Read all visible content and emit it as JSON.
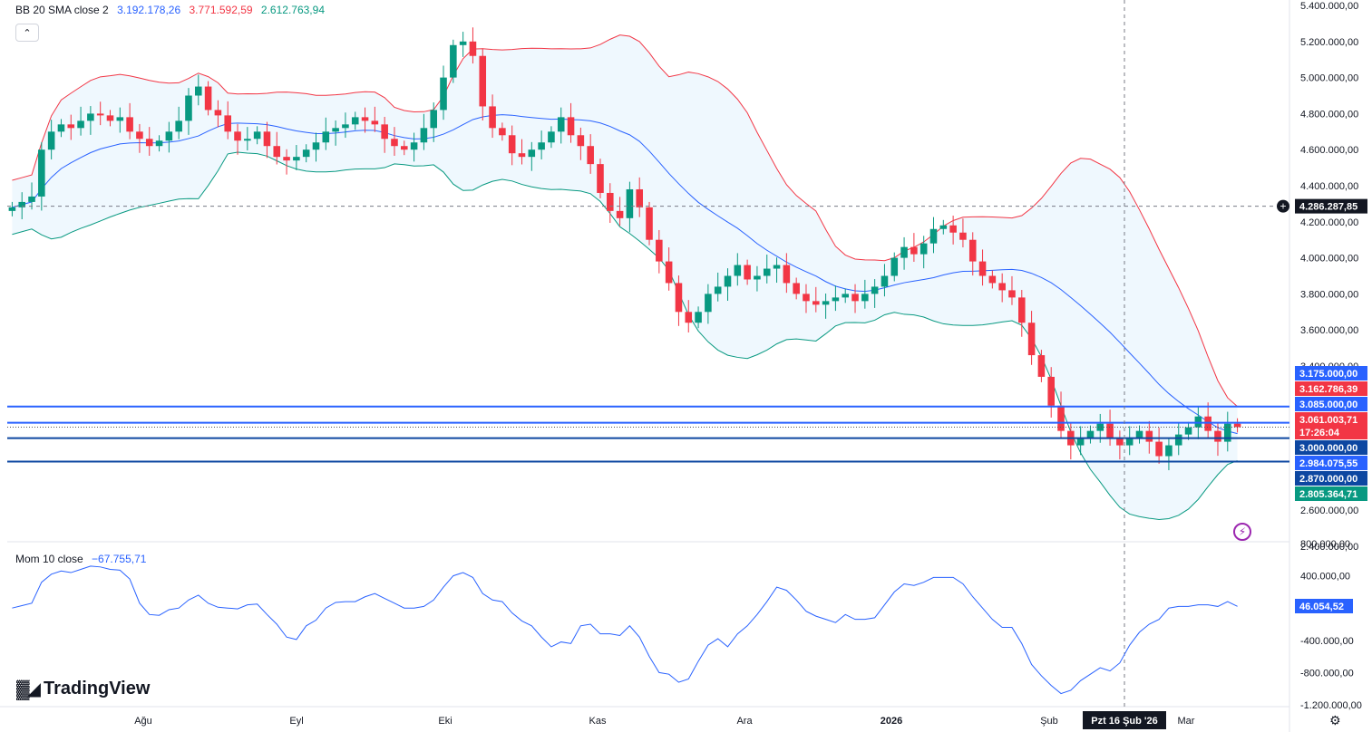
{
  "indicators": {
    "bb": {
      "name": "BB 20 SMA close 2",
      "basis": "3.192.178,26",
      "upper": "3.771.592,59",
      "lower": "2.612.763,94",
      "basis_color": "#2962ff",
      "upper_color": "#f23645",
      "lower_color": "#089981"
    },
    "mom": {
      "name": "Mom 10 close",
      "value": "−67.755,71",
      "color": "#2962ff"
    }
  },
  "branding": {
    "logo_text": "TradingView"
  },
  "icons": {
    "collapse": "chevron-up-icon",
    "crosshair_add": "plus-circle-icon",
    "alert": "lightning-icon",
    "settings": "gear-icon"
  },
  "price_axis": {
    "ticks": [
      "5.400.000,00",
      "5.200.000,00",
      "5.000.000,00",
      "4.800.000,00",
      "4.600.000,00",
      "4.400.000,00",
      "4.200.000,00",
      "4.000.000,00",
      "3.800.000,00",
      "3.600.000,00",
      "3.400.000,00",
      "2.600.000,00",
      "2.400.000,00"
    ],
    "crosshair_label": "4.286.287,85",
    "tags": [
      {
        "text": "3.175.000,00",
        "color": "#2962ff"
      },
      {
        "text": "3.162.786,39",
        "color": "#f23645"
      },
      {
        "text": "3.085.000,00",
        "color": "#2962ff"
      },
      {
        "text": "3.061.003,71",
        "color": "#f23645"
      },
      {
        "text": "17:26:04",
        "color": "#f23645"
      },
      {
        "text": "3.000.000,00",
        "color": "#0d47a1"
      },
      {
        "text": "2.984.075,55",
        "color": "#2962ff"
      },
      {
        "text": "2.870.000,00",
        "color": "#0d47a1"
      },
      {
        "text": "2.805.364,71",
        "color": "#089981"
      }
    ]
  },
  "mom_axis": {
    "ticks": [
      "800.000,00",
      "400.000,00",
      "-400.000,00",
      "-800.000,00",
      "-1.200.000,00"
    ],
    "value_tag": "46.054,52"
  },
  "time_axis": {
    "labels": [
      "Ağu",
      "Eyl",
      "Eki",
      "Kas",
      "Ara",
      "2026",
      "Şub",
      "Mar"
    ],
    "crosshair_label": "Pzt 16 Şub '26"
  },
  "chart_data": {
    "type": "candlestick",
    "title": "BB 20 SMA close 2 / Mom 10 close",
    "ylim": [
      2400000,
      5400000
    ],
    "mom_ylim": [
      -1200000,
      800000
    ],
    "horizontal_levels": [
      3175000,
      3085000,
      3000000,
      2870000
    ],
    "crosshair": {
      "price": 4286287.85,
      "date": "Pzt 16 Şub '26"
    },
    "closes": [
      4280000,
      4310000,
      4340000,
      4600000,
      4700000,
      4740000,
      4720000,
      4760000,
      4800000,
      4790000,
      4760000,
      4780000,
      4700000,
      4660000,
      4620000,
      4650000,
      4700000,
      4760000,
      4900000,
      4950000,
      4820000,
      4790000,
      4700000,
      4650000,
      4660000,
      4700000,
      4620000,
      4560000,
      4540000,
      4560000,
      4600000,
      4640000,
      4700000,
      4720000,
      4740000,
      4780000,
      4760000,
      4740000,
      4660000,
      4620000,
      4600000,
      4640000,
      4720000,
      4820000,
      5000000,
      5180000,
      5200000,
      5120000,
      4840000,
      4720000,
      4680000,
      4580000,
      4560000,
      4600000,
      4640000,
      4700000,
      4780000,
      4680000,
      4620000,
      4520000,
      4360000,
      4260000,
      4220000,
      4380000,
      4280000,
      4100000,
      3980000,
      3860000,
      3700000,
      3640000,
      3700000,
      3800000,
      3840000,
      3900000,
      3960000,
      3880000,
      3900000,
      3940000,
      3960000,
      3860000,
      3800000,
      3760000,
      3740000,
      3760000,
      3780000,
      3800000,
      3760000,
      3800000,
      3840000,
      3900000,
      4000000,
      4060000,
      4020000,
      4080000,
      4160000,
      4180000,
      4140000,
      4100000,
      3980000,
      3900000,
      3860000,
      3820000,
      3780000,
      3640000,
      3460000,
      3340000,
      3180000,
      3040000,
      2960000,
      3000000,
      3040000,
      3080000,
      3000000,
      2960000,
      3000000,
      3040000,
      2980000,
      2900000,
      2960000,
      3020000,
      3060000,
      3120000,
      3040000,
      2980000,
      3080000,
      3061003.71
    ],
    "bb_basis": "20-period SMA of close",
    "bb_upper": "basis + 2 stdev",
    "bb_lower": "basis - 2 stdev",
    "momentum": "close - close[10]"
  }
}
